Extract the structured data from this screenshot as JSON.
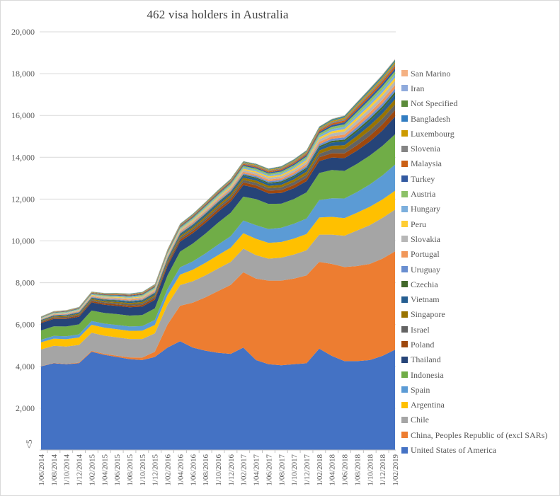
{
  "title": "462 visa holders in Australia",
  "y_axis": {
    "tick_labels": [
      "20,000",
      "18,000",
      "16,000",
      "14,000",
      "12,000",
      "10,000",
      "8,000",
      "6,000",
      "4,000",
      "2,000"
    ],
    "zero_label": "<5",
    "max": 20000,
    "step": 2000
  },
  "chart_data": {
    "type": "area",
    "stacked": true,
    "title": "462 visa holders in Australia",
    "xlabel": "",
    "ylabel": "",
    "ylim": [
      0,
      20000
    ],
    "grid": true,
    "legend_position": "right",
    "legend_order": "reverse_of_stack",
    "x": [
      "1/06/2014",
      "1/08/2014",
      "1/10/2014",
      "1/12/2014",
      "1/02/2015",
      "1/04/2015",
      "1/06/2015",
      "1/08/2015",
      "1/10/2015",
      "1/12/2015",
      "1/02/2016",
      "1/04/2016",
      "1/06/2016",
      "1/08/2016",
      "1/10/2016",
      "1/12/2016",
      "1/02/2017",
      "1/04/2017",
      "1/06/2017",
      "1/08/2017",
      "1/10/2017",
      "1/12/2017",
      "1/02/2018",
      "1/04/2018",
      "1/06/2018",
      "1/08/2018",
      "1/10/2018",
      "1/12/2018",
      "1/02/2019"
    ],
    "series": [
      {
        "name": "United States of America",
        "color": "#4472C4",
        "values": [
          4000,
          4150,
          4100,
          4150,
          4700,
          4550,
          4450,
          4350,
          4300,
          4450,
          4900,
          5200,
          4900,
          4750,
          4650,
          4600,
          4900,
          4300,
          4100,
          4050,
          4100,
          4150,
          4850,
          4500,
          4250,
          4250,
          4300,
          4500,
          4800
        ]
      },
      {
        "name": "China, Peoples Republic of (excl SARs)",
        "color": "#ED7D31",
        "values": [
          10,
          15,
          20,
          30,
          40,
          50,
          60,
          80,
          120,
          250,
          1100,
          1700,
          2150,
          2550,
          2950,
          3300,
          3600,
          3900,
          4000,
          4050,
          4100,
          4200,
          4150,
          4400,
          4500,
          4550,
          4600,
          4650,
          4700
        ]
      },
      {
        "name": "Chile",
        "color": "#A5A5A5",
        "values": [
          800,
          815,
          830,
          845,
          870,
          870,
          880,
          880,
          890,
          880,
          950,
          990,
          1020,
          1050,
          1080,
          1100,
          1130,
          1120,
          1050,
          1100,
          1150,
          1200,
          1300,
          1400,
          1500,
          1700,
          1850,
          1950,
          2000
        ]
      },
      {
        "name": "Argentina",
        "color": "#FFC000",
        "values": [
          340,
          345,
          350,
          355,
          380,
          385,
          390,
          390,
          395,
          400,
          450,
          500,
          550,
          600,
          640,
          680,
          740,
          780,
          760,
          750,
          760,
          780,
          820,
          850,
          840,
          850,
          880,
          880,
          900
        ]
      },
      {
        "name": "Spain",
        "color": "#5B9BD5",
        "values": [
          120,
          130,
          140,
          150,
          180,
          190,
          200,
          210,
          220,
          240,
          300,
          350,
          400,
          450,
          500,
          550,
          600,
          650,
          660,
          680,
          710,
          740,
          830,
          890,
          940,
          990,
          1070,
          1150,
          1250
        ]
      },
      {
        "name": "Indonesia",
        "color": "#70AD47",
        "values": [
          450,
          460,
          470,
          480,
          500,
          510,
          520,
          520,
          530,
          550,
          650,
          750,
          850,
          950,
          1050,
          1120,
          1150,
          1250,
          1200,
          1150,
          1180,
          1250,
          1300,
          1350,
          1320,
          1350,
          1380,
          1410,
          1450
        ]
      },
      {
        "name": "Thailand",
        "color": "#264478",
        "values": [
          350,
          355,
          360,
          365,
          390,
          390,
          395,
          395,
          400,
          410,
          450,
          480,
          500,
          510,
          520,
          530,
          550,
          530,
          500,
          510,
          520,
          540,
          570,
          600,
          610,
          630,
          670,
          740,
          850
        ]
      },
      {
        "name": "Poland",
        "color": "#9E480E",
        "values": [
          40,
          45,
          50,
          56,
          61,
          66,
          71,
          76,
          82,
          87,
          92,
          97,
          105,
          113,
          118,
          123,
          128,
          131,
          134,
          144,
          154,
          165,
          183,
          204,
          225,
          256,
          279,
          292,
          300
        ]
      },
      {
        "name": "Israel",
        "color": "#636363",
        "values": [
          35,
          40,
          45,
          50,
          55,
          60,
          64,
          69,
          74,
          79,
          84,
          89,
          96,
          104,
          109,
          113,
          118,
          121,
          123,
          133,
          143,
          153,
          170,
          189,
          209,
          238,
          260,
          273,
          280
        ]
      },
      {
        "name": "Singapore",
        "color": "#997300",
        "values": [
          30,
          34,
          39,
          43,
          48,
          52,
          56,
          61,
          65,
          70,
          74,
          78,
          85,
          92,
          96,
          100,
          105,
          107,
          109,
          118,
          127,
          136,
          151,
          169,
          186,
          213,
          232,
          243,
          250
        ]
      },
      {
        "name": "Vietnam",
        "color": "#255E91",
        "values": [
          25,
          29,
          33,
          37,
          41,
          46,
          50,
          54,
          58,
          62,
          66,
          70,
          76,
          82,
          87,
          91,
          95,
          97,
          99,
          107,
          115,
          123,
          138,
          154,
          171,
          195,
          214,
          224,
          230
        ]
      },
      {
        "name": "Czechia",
        "color": "#43682B",
        "values": [
          15,
          17,
          19,
          21,
          23,
          26,
          28,
          30,
          32,
          34,
          36,
          38,
          41,
          44,
          47,
          49,
          51,
          52,
          53,
          57,
          61,
          65,
          73,
          81,
          90,
          102,
          112,
          117,
          120
        ]
      },
      {
        "name": "Uruguay",
        "color": "#698ED0",
        "values": [
          18,
          21,
          23,
          26,
          29,
          31,
          34,
          36,
          39,
          42,
          44,
          47,
          51,
          55,
          58,
          60,
          63,
          64,
          66,
          71,
          76,
          81,
          91,
          101,
          112,
          128,
          139,
          146,
          150
        ]
      },
      {
        "name": "Portugal",
        "color": "#F1975A",
        "values": [
          22,
          25,
          28,
          31,
          35,
          38,
          41,
          44,
          47,
          50,
          54,
          57,
          62,
          66,
          69,
          73,
          76,
          77,
          79,
          85,
          92,
          98,
          109,
          122,
          134,
          153,
          167,
          175,
          180
        ]
      },
      {
        "name": "Slovakia",
        "color": "#B7B7B7",
        "values": [
          25,
          29,
          32,
          36,
          39,
          43,
          46,
          50,
          53,
          57,
          60,
          64,
          69,
          74,
          78,
          81,
          85,
          86,
          88,
          95,
          102,
          109,
          121,
          135,
          149,
          170,
          186,
          195,
          200
        ]
      },
      {
        "name": "Peru",
        "color": "#FFCD33",
        "values": [
          15,
          18,
          20,
          23,
          26,
          29,
          31,
          34,
          37,
          39,
          42,
          45,
          49,
          53,
          56,
          58,
          61,
          62,
          64,
          69,
          74,
          80,
          89,
          100,
          111,
          127,
          139,
          146,
          150
        ]
      },
      {
        "name": "Hungary",
        "color": "#7CAFDD",
        "values": [
          18,
          21,
          23,
          26,
          29,
          31,
          34,
          36,
          39,
          42,
          44,
          47,
          51,
          55,
          58,
          60,
          63,
          64,
          66,
          71,
          76,
          81,
          91,
          101,
          112,
          128,
          139,
          146,
          150
        ]
      },
      {
        "name": "Austria",
        "color": "#8CC168",
        "values": [
          20,
          23,
          26,
          28,
          31,
          34,
          37,
          40,
          42,
          45,
          48,
          51,
          55,
          59,
          62,
          65,
          68,
          69,
          70,
          76,
          82,
          87,
          97,
          108,
          119,
          136,
          149,
          156,
          160
        ]
      },
      {
        "name": "Turkey",
        "color": "#335AA1",
        "values": [
          15,
          17,
          20,
          22,
          24,
          27,
          29,
          31,
          33,
          36,
          38,
          40,
          44,
          47,
          50,
          52,
          54,
          55,
          56,
          61,
          66,
          70,
          78,
          87,
          97,
          110,
          121,
          127,
          130
        ]
      },
      {
        "name": "Malaysia",
        "color": "#CB6015",
        "values": [
          12,
          14,
          16,
          18,
          21,
          23,
          25,
          27,
          29,
          31,
          34,
          36,
          39,
          42,
          44,
          47,
          49,
          50,
          51,
          55,
          60,
          64,
          71,
          80,
          89,
          102,
          111,
          117,
          120
        ]
      },
      {
        "name": "Slovenia",
        "color": "#848484",
        "values": [
          10,
          12,
          14,
          15,
          17,
          19,
          21,
          23,
          24,
          26,
          28,
          30,
          33,
          35,
          37,
          39,
          41,
          42,
          42,
          46,
          50,
          53,
          60,
          67,
          74,
          85,
          93,
          97,
          100
        ]
      },
      {
        "name": "Luxembourg",
        "color": "#CC9A00",
        "values": [
          8,
          9,
          11,
          12,
          14,
          15,
          17,
          18,
          20,
          21,
          22,
          24,
          26,
          28,
          30,
          31,
          32,
          33,
          34,
          37,
          40,
          43,
          48,
          53,
          59,
          68,
          74,
          78,
          80
        ]
      },
      {
        "name": "Bangladesh",
        "color": "#327DC2",
        "values": [
          6,
          7,
          8,
          9,
          10,
          11,
          12,
          14,
          15,
          16,
          17,
          18,
          20,
          21,
          22,
          23,
          24,
          25,
          25,
          28,
          30,
          32,
          36,
          40,
          44,
          51,
          56,
          58,
          60
        ]
      },
      {
        "name": "Not Specified",
        "color": "#5A8A39",
        "values": [
          5,
          6,
          7,
          8,
          9,
          10,
          10,
          11,
          12,
          13,
          14,
          15,
          16,
          18,
          19,
          19,
          20,
          21,
          21,
          23,
          25,
          27,
          30,
          33,
          37,
          42,
          46,
          49,
          50
        ]
      },
      {
        "name": "Iran",
        "color": "#8FAADC",
        "values": [
          3,
          4,
          4,
          5,
          5,
          6,
          6,
          7,
          7,
          8,
          8,
          9,
          10,
          11,
          11,
          12,
          12,
          12,
          13,
          14,
          15,
          16,
          18,
          20,
          22,
          25,
          28,
          29,
          30
        ]
      },
      {
        "name": "San Marino",
        "color": "#F4B183",
        "values": [
          1,
          1,
          1,
          2,
          2,
          2,
          2,
          2,
          2,
          3,
          3,
          3,
          3,
          4,
          4,
          4,
          4,
          4,
          4,
          5,
          5,
          5,
          6,
          7,
          7,
          8,
          9,
          10,
          10
        ]
      }
    ]
  },
  "colors": {
    "gridline": "#d9d9d9",
    "axis_line": "#bfbfbf",
    "axis_text": "#595959",
    "title_text": "#404040"
  }
}
